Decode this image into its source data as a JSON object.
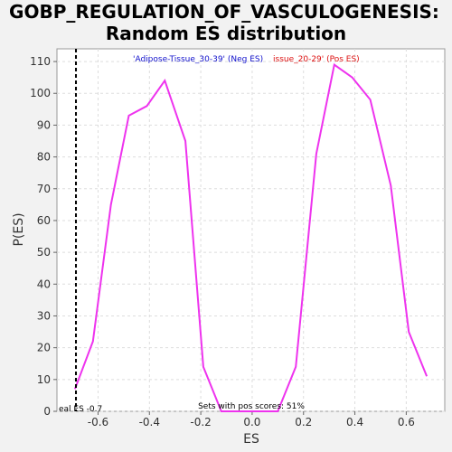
{
  "chart_data": {
    "type": "line",
    "title_line1": "GOBP_REGULATION_OF_VASCULOGENESIS:",
    "title_line2": "Random ES distribution",
    "xlabel": "ES",
    "ylabel": "P(ES)",
    "xlim": [
      -0.76,
      0.75
    ],
    "ylim": [
      0,
      114
    ],
    "xticks": [
      -0.6,
      -0.4,
      -0.2,
      0.0,
      0.2,
      0.4,
      0.6
    ],
    "xtick_labels": [
      "-0.6",
      "-0.4",
      "-0.2",
      "0.0",
      "0.2",
      "0.4",
      "0.6"
    ],
    "yticks": [
      0,
      10,
      20,
      30,
      40,
      50,
      60,
      70,
      80,
      90,
      100,
      110
    ],
    "ytick_labels": [
      "0",
      "10",
      "20",
      "30",
      "40",
      "50",
      "60",
      "70",
      "80",
      "90",
      "100",
      "110"
    ],
    "grid": true,
    "series": [
      {
        "color": "#ee33ee",
        "x": [
          -0.69,
          -0.62,
          -0.55,
          -0.48,
          -0.41,
          -0.34,
          -0.26,
          -0.19,
          -0.12,
          -0.05,
          0.03,
          0.1,
          0.17,
          0.25,
          0.32,
          0.39,
          0.46,
          0.54,
          0.61,
          0.68
        ],
        "y": [
          7,
          22,
          65,
          93,
          96,
          104,
          85,
          14,
          0,
          0,
          0,
          0,
          14,
          81,
          109,
          105,
          98,
          71,
          25,
          11
        ]
      }
    ],
    "real_es": {
      "value": -0.686,
      "label": "eal ES -0.7"
    },
    "neg_label": "'Adipose-Tissue_30-39' (Neg ES)",
    "pos_label": "issue_20-29' (Pos ES)",
    "neg_color": "#1111cc",
    "pos_color": "#dd1111",
    "pos_scores_text": "Sets with pos scores: 51%"
  }
}
